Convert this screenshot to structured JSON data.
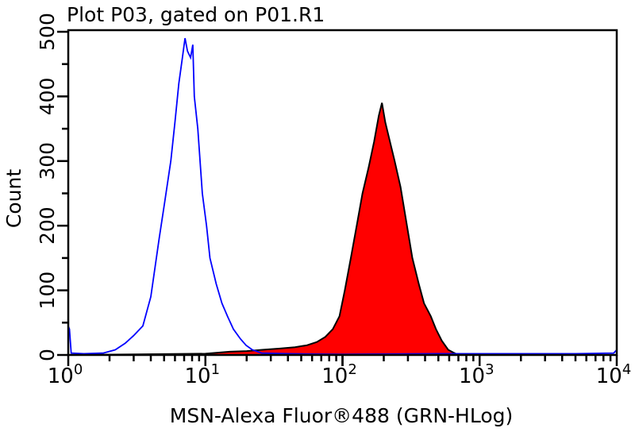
{
  "chart_data": {
    "type": "area",
    "title": "Plot P03, gated on P01.R1",
    "xlabel": "MSN-Alexa Fluor®488 (GRN-HLog)",
    "ylabel": "Count",
    "xscale": "log",
    "xlim": [
      1,
      10000
    ],
    "ylim": [
      0,
      502
    ],
    "x_ticks": [
      {
        "base": "10",
        "exp": "0",
        "v": 1
      },
      {
        "base": "10",
        "exp": "1",
        "v": 10
      },
      {
        "base": "10",
        "exp": "2",
        "v": 100
      },
      {
        "base": "10",
        "exp": "3",
        "v": 1000
      },
      {
        "base": "10",
        "exp": "4",
        "v": 10000
      }
    ],
    "y_ticks": [
      "0",
      "100",
      "200",
      "300",
      "400",
      "500"
    ],
    "grid": false,
    "series": [
      {
        "color": "#0000ff",
        "style": "line",
        "x": [
          1.0,
          1.02,
          1.05,
          1.3,
          1.8,
          2.2,
          2.6,
          3.0,
          3.5,
          4.0,
          4.6,
          5.0,
          5.6,
          6.0,
          6.4,
          6.8,
          7.1,
          7.4,
          7.8,
          8.1,
          8.3,
          8.8,
          9.5,
          10.2,
          10.8,
          12,
          13.2,
          14.5,
          16,
          18,
          19.8,
          22,
          25.7,
          40,
          100,
          500,
          1000,
          5000,
          9500,
          10000
        ],
        "y": [
          45,
          40,
          3,
          2,
          3,
          8,
          18,
          30,
          45,
          90,
          180,
          230,
          300,
          360,
          420,
          460,
          490,
          470,
          460,
          480,
          400,
          350,
          250,
          200,
          150,
          110,
          80,
          60,
          40,
          25,
          15,
          8,
          3,
          2,
          1,
          2,
          2,
          2,
          3,
          8
        ]
      },
      {
        "color": "#ff0000",
        "outline": "#000000",
        "style": "filled",
        "x": [
          1.0,
          3,
          10,
          15,
          20,
          26,
          35,
          45,
          55,
          65,
          75,
          85,
          95,
          104,
          115,
          127,
          140,
          155,
          170,
          184,
          194,
          205,
          216,
          240,
          265,
          295,
          323,
          360,
          393,
          440,
          480,
          530,
          590,
          640,
          670,
          800,
          2000,
          10000
        ],
        "y": [
          0,
          1,
          2,
          5,
          6,
          8,
          10,
          12,
          15,
          20,
          28,
          40,
          60,
          100,
          150,
          200,
          250,
          290,
          330,
          370,
          390,
          360,
          340,
          300,
          260,
          200,
          150,
          110,
          80,
          60,
          40,
          22,
          8,
          4,
          2,
          1,
          0,
          0
        ]
      }
    ]
  }
}
